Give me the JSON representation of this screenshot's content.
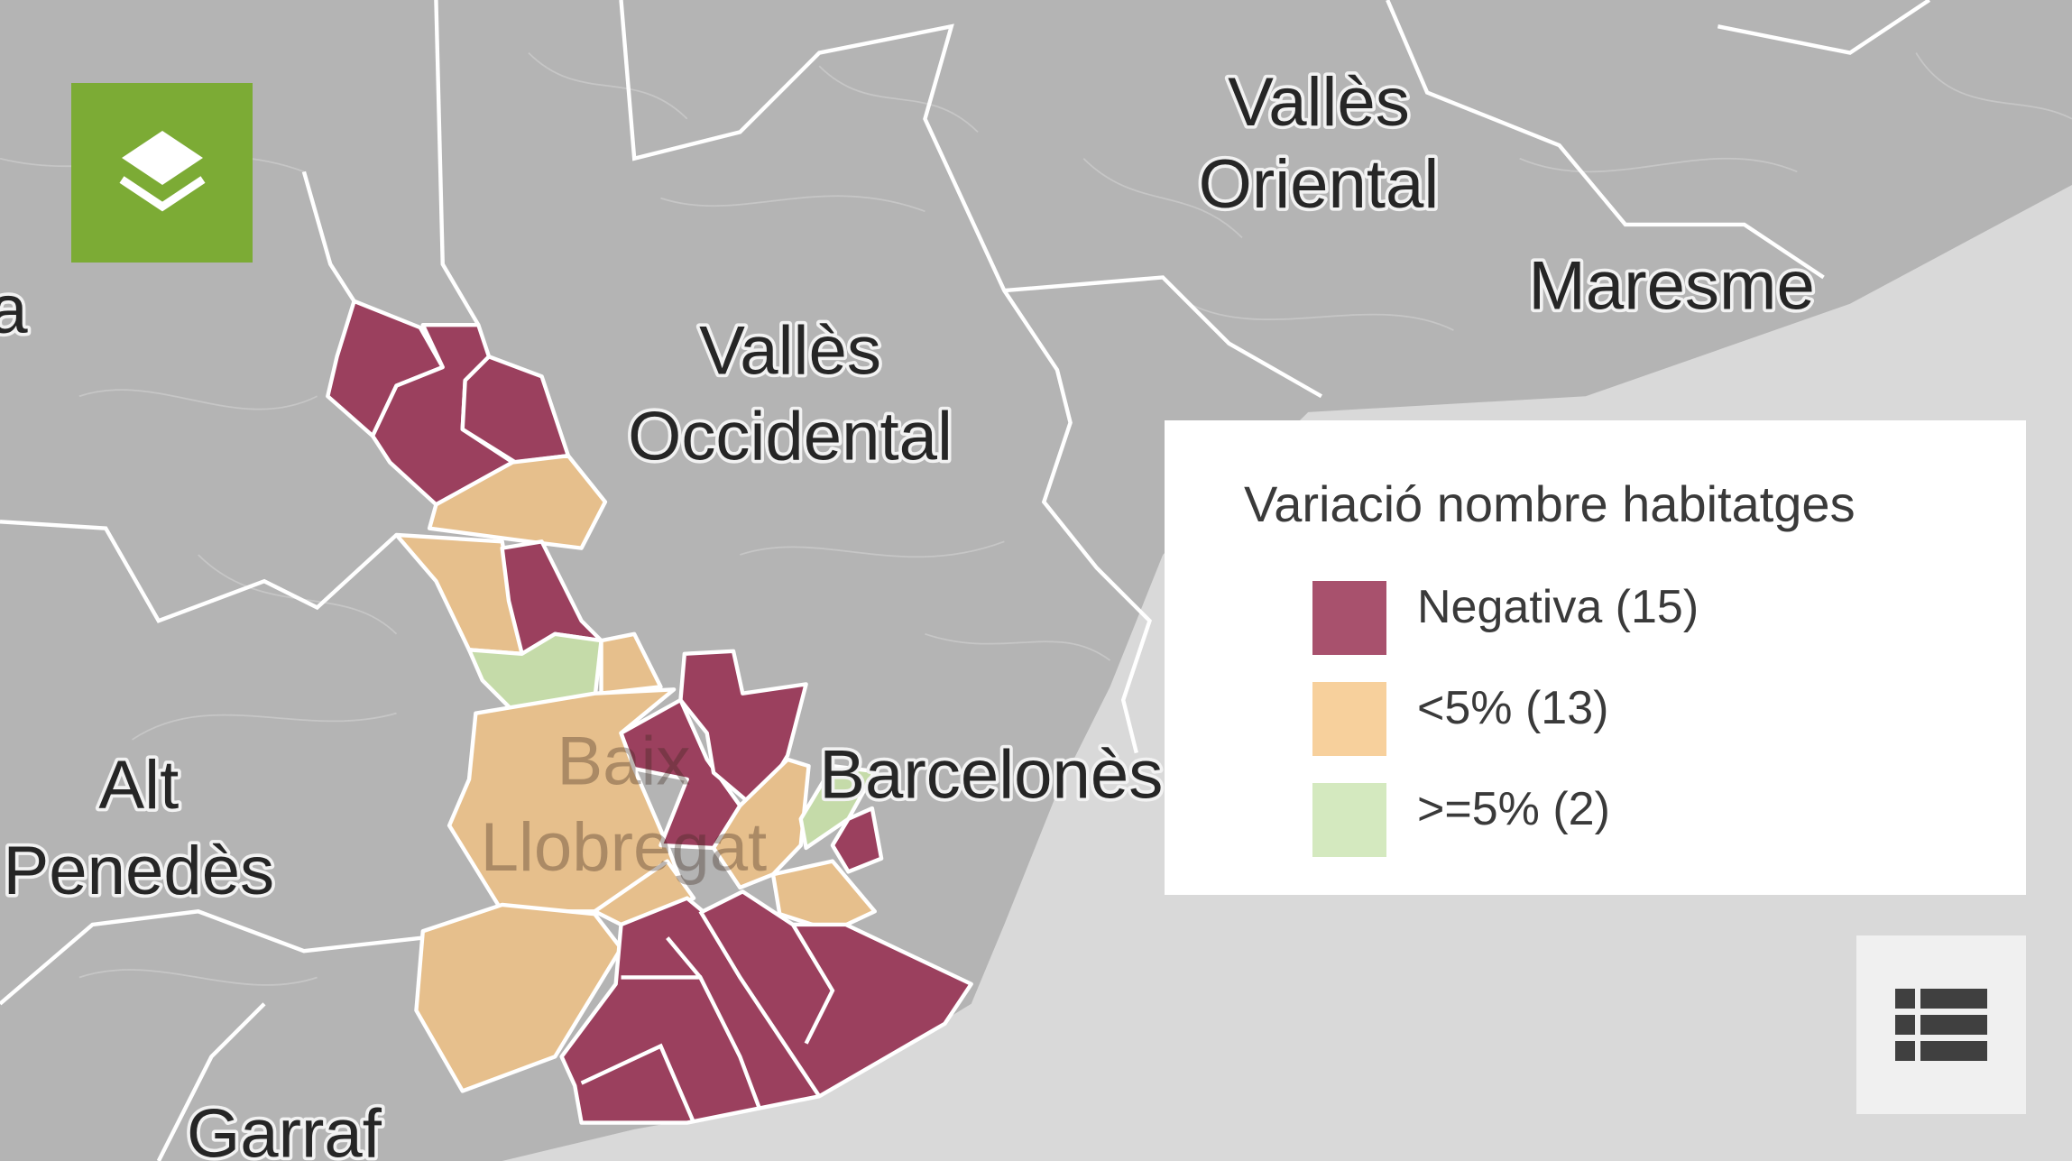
{
  "map": {
    "labels": {
      "valles_oriental_1": "Vallès",
      "valles_oriental_2": "Oriental",
      "maresme": "Maresme",
      "valles_occidental_1": "Vallès",
      "valles_occidental_2": "Occidental",
      "alt_penedes_1": "Alt",
      "alt_penedes_2": "Penedès",
      "baix_llobregat_1": "Baix",
      "baix_llobregat_2": "Llobregat",
      "barcelones": "Barcelonès",
      "garraf": "Garraf",
      "cut_left": "a"
    },
    "colors": {
      "land": "#b4b4b4",
      "sea": "#d9d9d9",
      "negativa": "#9b405e",
      "lt5": "#e6bf8c",
      "ge5": "#c5dba9"
    }
  },
  "layers_button": {
    "icon": "layers-icon",
    "color": "#7cab35"
  },
  "legend": {
    "title": "Variació nombre habitatges",
    "items": [
      {
        "label": "Negativa (15)",
        "color": "#a8516d"
      },
      {
        "label": "<5% (13)",
        "color": "#f7d09c"
      },
      {
        "label": ">=5% (2)",
        "color": "#d4e9bf"
      }
    ]
  },
  "table_button": {
    "icon": "table-list-icon"
  }
}
